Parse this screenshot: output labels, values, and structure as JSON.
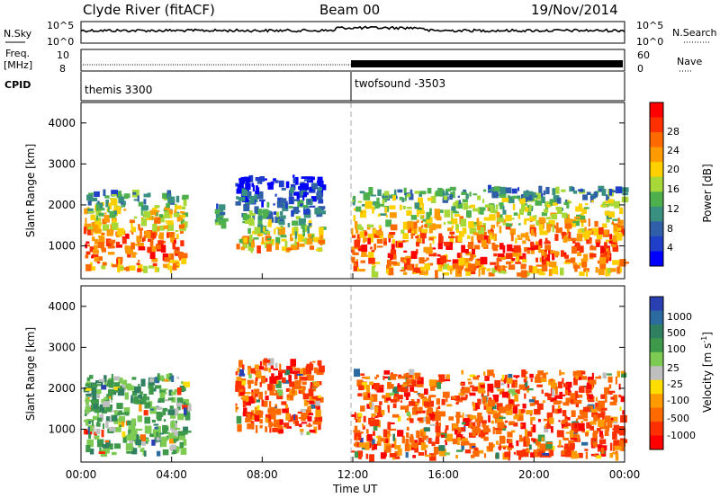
{
  "header": {
    "station": "Clyde River (fitACF)",
    "beam": "Beam 00",
    "date": "19/Nov/2014"
  },
  "panels": {
    "nsky": {
      "left_label": "N.Sky",
      "left_ticks": [
        "10^5",
        "10^0"
      ],
      "right_ticks": [
        "10^5",
        "10^0"
      ],
      "right_label": "N.Search"
    },
    "freq": {
      "left_label_1": "Freq.",
      "left_label_2": "[MHz]",
      "left_ticks": [
        "10",
        "8"
      ],
      "right_ticks": [
        "60",
        "0"
      ],
      "right_label": "Nave"
    },
    "cpid": {
      "label": "CPID",
      "programs": [
        {
          "name": "themis 3300",
          "start": "00:00"
        },
        {
          "name": "twofsound -3503",
          "start": "12:00"
        }
      ]
    }
  },
  "colorbars": {
    "power": {
      "title": "Power [dB]",
      "ticks": [
        "28",
        "24",
        "20",
        "16",
        "12",
        "8",
        "4"
      ],
      "colors": [
        "#ff0000",
        "#ff3000",
        "#ff6a00",
        "#ff9a00",
        "#ffd000",
        "#a8d838",
        "#4db04d",
        "#3a9080",
        "#2f5fa8",
        "#1f3fc8",
        "#0000ff"
      ]
    },
    "velocity": {
      "title_main": "Velocity [m s",
      "title_sup": "-1",
      "title_end": "]",
      "ticks": [
        "1000",
        "500",
        "100",
        "25",
        "-25",
        "-100",
        "-500",
        "-1000"
      ],
      "colors": [
        "#2a3fb0",
        "#2b6ba0",
        "#2f8060",
        "#3e9a4a",
        "#7ecb54",
        "#bfbfbf",
        "#ffdd00",
        "#ff9a00",
        "#ff6a00",
        "#ff3000",
        "#ff0000"
      ]
    }
  },
  "chart_data": [
    {
      "type": "heatmap",
      "title": "Power",
      "ylabel": "Slant Range [km]",
      "xlabel": "Time UT",
      "x_ticks": [
        "00:00",
        "04:00",
        "08:00",
        "12:00",
        "16:00",
        "20:00",
        "00:00"
      ],
      "y_ticks": [
        1000,
        2000,
        3000,
        4000
      ],
      "xlim_hours": [
        0,
        24
      ],
      "ylim_km": [
        200,
        4500
      ],
      "colorbar_range_db": [
        0,
        30
      ],
      "echo_regions": [
        {
          "t0": 0.1,
          "t1": 4.6,
          "r0": 400,
          "r1": 2300,
          "peak_db": 28
        },
        {
          "t0": 5.9,
          "t1": 6.2,
          "r0": 1500,
          "r1": 2000,
          "peak_db": 12
        },
        {
          "t0": 6.8,
          "t1": 10.6,
          "r0": 900,
          "r1": 2700,
          "peak_db": 22
        },
        {
          "t0": 11.9,
          "t1": 23.9,
          "r0": 300,
          "r1": 2400,
          "peak_db": 30
        }
      ]
    },
    {
      "type": "heatmap",
      "title": "Velocity",
      "ylabel": "Slant Range [km]",
      "xlabel": "Time UT",
      "x_ticks": [
        "00:00",
        "04:00",
        "08:00",
        "12:00",
        "16:00",
        "20:00",
        "00:00"
      ],
      "y_ticks": [
        1000,
        2000,
        3000,
        4000
      ],
      "xlim_hours": [
        0,
        24
      ],
      "ylim_km": [
        200,
        4500
      ],
      "colorbar_range_mps": [
        -1000,
        1000
      ],
      "echo_regions": [
        {
          "t0": 0.1,
          "t1": 4.6,
          "r0": 400,
          "r1": 2300,
          "velocity": 100
        },
        {
          "t0": 6.8,
          "t1": 10.6,
          "r0": 900,
          "r1": 2700,
          "velocity": -500
        },
        {
          "t0": 11.9,
          "t1": 23.9,
          "r0": 300,
          "r1": 2400,
          "velocity": -500
        }
      ]
    }
  ]
}
